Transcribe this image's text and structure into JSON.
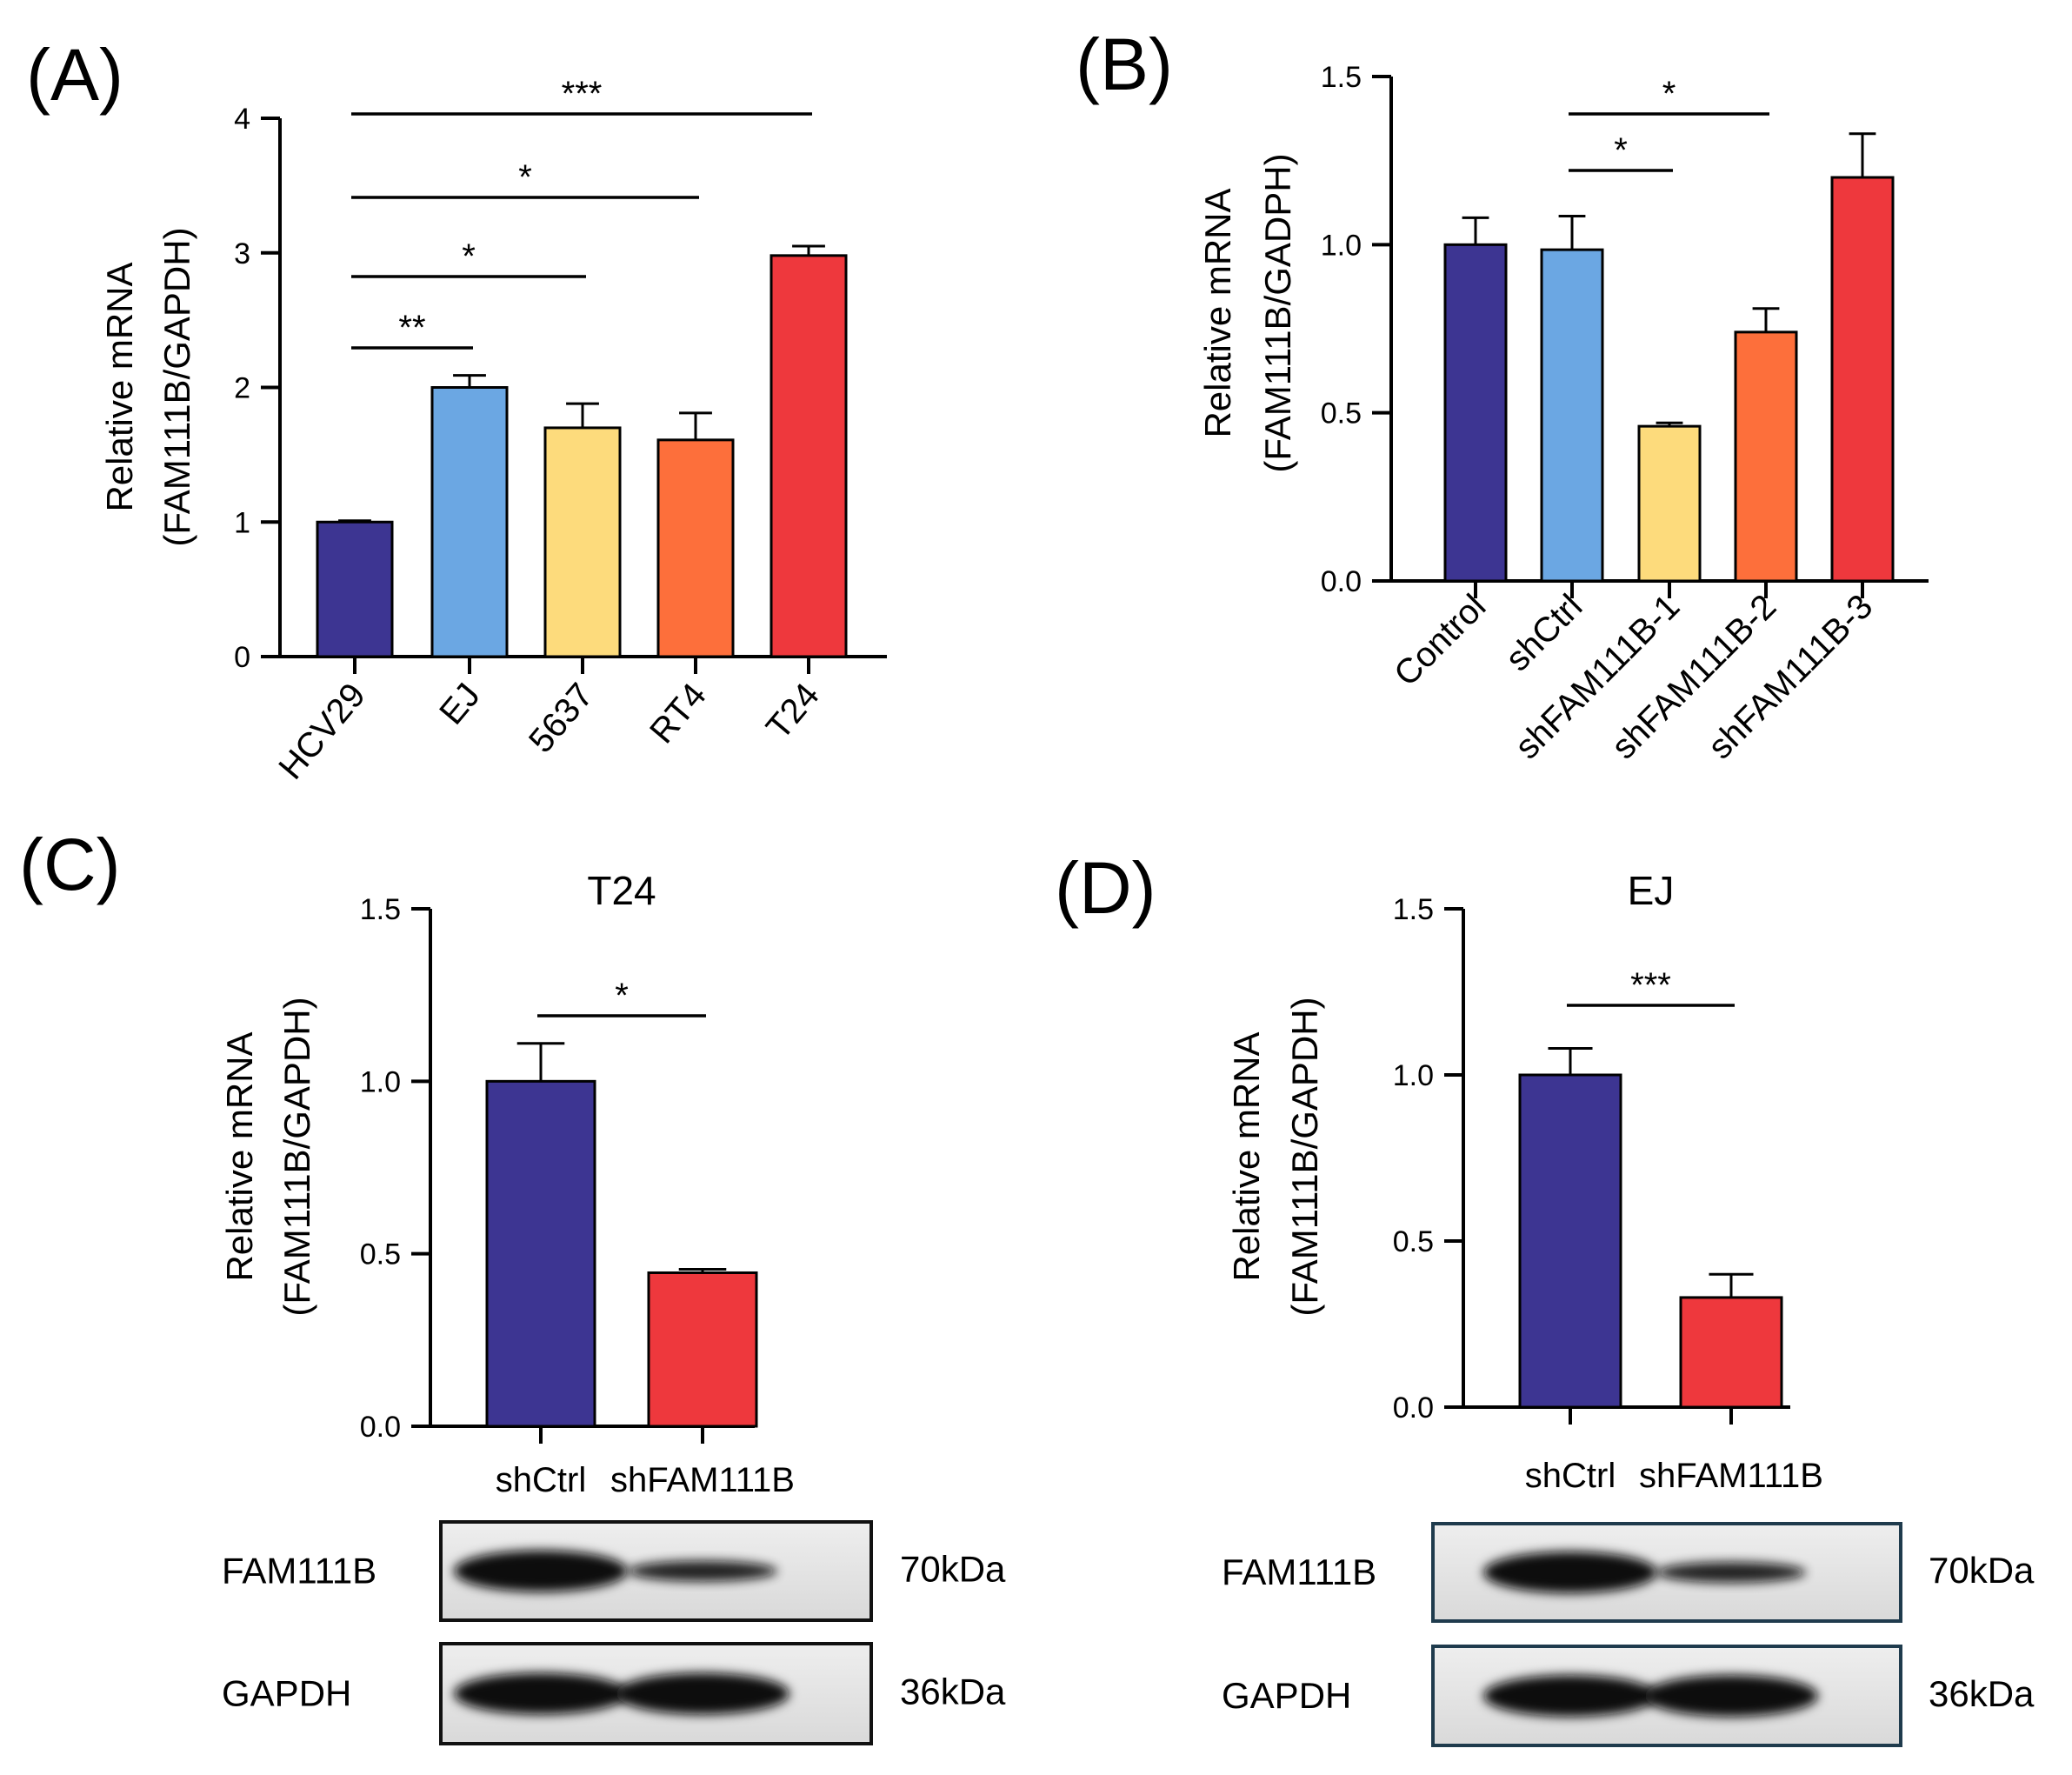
{
  "colors": {
    "navy": "#3d3592",
    "lightblue": "#6ba7e3",
    "yellow": "#fddb7c",
    "orange": "#fd6f3b",
    "red": "#ee383d"
  },
  "chart_data": [
    {
      "panel": "(A)",
      "type": "bar",
      "title": "",
      "ylabel": [
        "Relative mRNA",
        "(FAM111B/GAPDH)"
      ],
      "ylim": [
        0,
        4
      ],
      "yticks": [
        "0",
        "1",
        "2",
        "3",
        "4"
      ],
      "categories": [
        "HCV29",
        "EJ",
        "5637",
        "RT4",
        "T24"
      ],
      "values": [
        1.0,
        2.0,
        1.7,
        1.61,
        2.98
      ],
      "errors": [
        0.01,
        0.09,
        0.18,
        0.2,
        0.07
      ],
      "colors": [
        "navy",
        "lightblue",
        "yellow",
        "orange",
        "red"
      ],
      "significance": [
        {
          "from": 0,
          "to": 1,
          "label": "**"
        },
        {
          "from": 0,
          "to": 2,
          "label": "*"
        },
        {
          "from": 0,
          "to": 3,
          "label": "*"
        },
        {
          "from": 0,
          "to": 4,
          "label": "***"
        }
      ]
    },
    {
      "panel": "(B)",
      "type": "bar",
      "title": "",
      "ylabel": [
        "Relative mRNA",
        "(FAM111B/GADPH)"
      ],
      "ylim": [
        0,
        1.5
      ],
      "yticks": [
        "0.0",
        "0.5",
        "1.0",
        "1.5"
      ],
      "categories": [
        "Control",
        "shCtrl",
        "shFAM111B-1",
        "shFAM111B-2",
        "shFAM111B-3"
      ],
      "values": [
        1.0,
        0.985,
        0.46,
        0.74,
        1.2
      ],
      "errors": [
        0.08,
        0.1,
        0.01,
        0.07,
        0.13
      ],
      "colors": [
        "navy",
        "lightblue",
        "yellow",
        "orange",
        "red"
      ],
      "significance": [
        {
          "from": 1,
          "to": 2,
          "label": "*"
        },
        {
          "from": 1,
          "to": 3,
          "label": "*"
        }
      ]
    },
    {
      "panel": "(C)",
      "type": "bar",
      "title": "T24",
      "ylabel": [
        "Relative mRNA",
        "(FAM111B/GAPDH)"
      ],
      "ylim": [
        0,
        1.5
      ],
      "yticks": [
        "0.0",
        "0.5",
        "1.0",
        "1.5"
      ],
      "categories": [
        "shCtrl",
        "shFAM111B"
      ],
      "values": [
        1.0,
        0.445
      ],
      "errors": [
        0.11,
        0.01
      ],
      "colors": [
        "navy",
        "red"
      ],
      "significance": [
        {
          "from": 0,
          "to": 1,
          "label": "*"
        }
      ],
      "blots": [
        {
          "protein": "FAM111B",
          "size": "70kDa"
        },
        {
          "protein": "GAPDH",
          "size": "36kDa"
        }
      ]
    },
    {
      "panel": "(D)",
      "type": "bar",
      "title": "EJ",
      "ylabel": [
        "Relative mRNA",
        "(FAM111B/GAPDH)"
      ],
      "ylim": [
        0,
        1.5
      ],
      "yticks": [
        "0.0",
        "0.5",
        "1.0",
        "1.5"
      ],
      "categories": [
        "shCtrl",
        "shFAM111B"
      ],
      "values": [
        1.0,
        0.33
      ],
      "errors": [
        0.08,
        0.07
      ],
      "colors": [
        "navy",
        "red"
      ],
      "significance": [
        {
          "from": 0,
          "to": 1,
          "label": "***"
        }
      ],
      "blots": [
        {
          "protein": "FAM111B",
          "size": "70kDa"
        },
        {
          "protein": "GAPDH",
          "size": "36kDa"
        }
      ]
    }
  ]
}
